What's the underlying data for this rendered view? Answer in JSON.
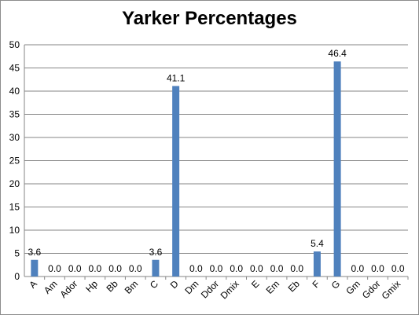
{
  "chart_data": {
    "type": "bar",
    "title": "Yarker Percentages",
    "xlabel": "",
    "ylabel": "",
    "ylim": [
      0,
      50
    ],
    "yticks": [
      0,
      5,
      10,
      15,
      20,
      25,
      30,
      35,
      40,
      45,
      50
    ],
    "grid": true,
    "legend": "none",
    "bar_color": "#4f81bd",
    "categories": [
      "A",
      "Am",
      "Ador",
      "Hp",
      "Bb",
      "Bm",
      "C",
      "D",
      "Dm",
      "Ddor",
      "Dmix",
      "E",
      "Em",
      "Eb",
      "F",
      "G",
      "Gm",
      "Gdor",
      "Gmix"
    ],
    "values": [
      3.6,
      0.0,
      0.0,
      0.0,
      0.0,
      0.0,
      3.6,
      41.1,
      0.0,
      0.0,
      0.0,
      0.0,
      0.0,
      0.0,
      5.4,
      46.4,
      0.0,
      0.0,
      0.0
    ],
    "data_labels": [
      "3.6",
      "0.0",
      "0.0",
      "0.0",
      "0.0",
      "0.0",
      "3.6",
      "41.1",
      "0.0",
      "0.0",
      "0.0",
      "0.0",
      "0.0",
      "0.0",
      "5.4",
      "46.4",
      "0.0",
      "0.0",
      "0.0"
    ]
  }
}
